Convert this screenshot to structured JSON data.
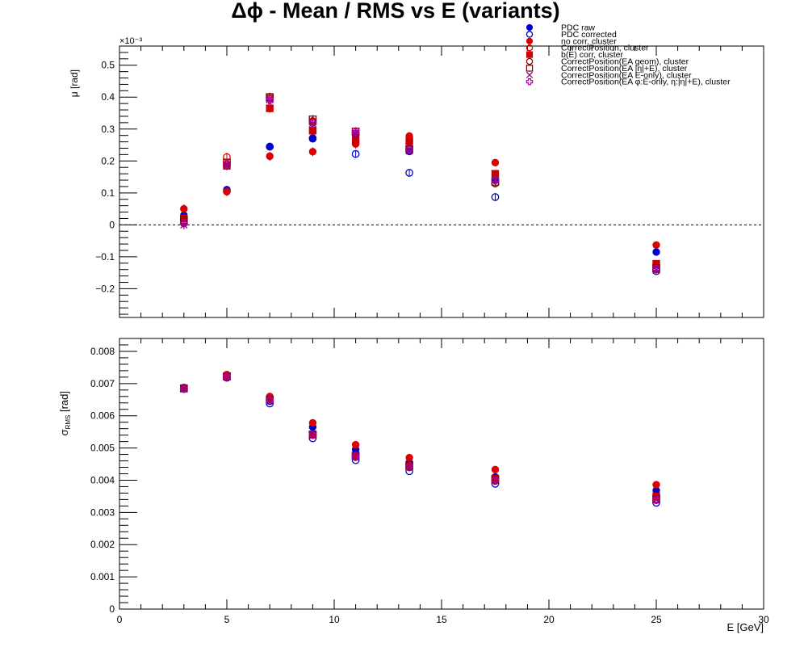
{
  "title": "Δϕ  -  Mean / RMS vs E  (variants)",
  "legend": {
    "placement": "top-right",
    "entries": [
      {
        "label": "PDC raw",
        "marker": "filled-circle",
        "color": "#0000cc"
      },
      {
        "label": "PDC corrected",
        "marker": "open-circle",
        "color": "#0000cc"
      },
      {
        "label": "no corr, cluster",
        "marker": "filled-circle",
        "color": "#dd0000"
      },
      {
        "label": "CorrectPosition, cluster",
        "marker": "open-circle",
        "color": "#dd0000"
      },
      {
        "label": "b(E) corr, cluster",
        "marker": "filled-square",
        "color": "#cc0000"
      },
      {
        "label": "CorrectPosition(EA geom), cluster",
        "marker": "open-circle",
        "color": "#880000"
      },
      {
        "label": "CorrectPosition(EA |η|+E), cluster",
        "marker": "open-square",
        "color": "#880000"
      },
      {
        "label": "CorrectPosition(EA E-only), cluster",
        "marker": "cross",
        "color": "#880088"
      },
      {
        "label": "CorrectPosition(EA φ:E-only, η:|η|+E), cluster",
        "marker": "open-cross",
        "color": "#aa00aa"
      }
    ]
  },
  "chart_data": [
    {
      "type": "scatter",
      "panel": "top",
      "ylabel": "μ  [rad]",
      "yexponent": "×10⁻³",
      "xlim": [
        0,
        30
      ],
      "ylim": [
        -0.29,
        0.56
      ],
      "yticks": [
        "0.5",
        "0.4",
        "0.3",
        "0.2",
        "0.1",
        "0",
        "−0.1",
        "−0.2"
      ],
      "yticks_values": [
        0.5,
        0.4,
        0.3,
        0.2,
        0.1,
        0,
        -0.1,
        -0.2
      ],
      "reference_line": 0,
      "x": [
        3,
        5,
        7,
        9,
        11,
        13.5,
        17.5,
        25
      ],
      "series": [
        {
          "name": "PDC raw",
          "values": [
            0.03,
            0.11,
            0.245,
            0.272,
            0.28,
            0.23,
            0.14,
            -0.085
          ],
          "err": [
            0.012,
            0.012,
            0.012,
            0.012,
            0.012,
            0.012,
            0.01,
            0.008
          ]
        },
        {
          "name": "PDC corrected",
          "values": [
            0.02,
            0.105,
            0.245,
            0.27,
            0.222,
            0.163,
            0.087,
            -0.145
          ],
          "err": [
            0.012,
            0.012,
            0.012,
            0.012,
            0.012,
            0.012,
            0.01,
            0.008
          ]
        },
        {
          "name": "no corr, cluster",
          "values": [
            0.05,
            0.104,
            0.215,
            0.229,
            0.253,
            0.278,
            0.195,
            -0.063
          ],
          "err": [
            0.014,
            0.014,
            0.014,
            0.014,
            0.014,
            0.012,
            0.01,
            0.008
          ]
        },
        {
          "name": "CorrectPosition, cluster",
          "values": [
            0.01,
            0.212,
            0.4,
            0.325,
            0.28,
            0.24,
            0.13,
            -0.138
          ],
          "err": [
            0.014,
            0.014,
            0.014,
            0.014,
            0.014,
            0.012,
            0.01,
            0.008
          ]
        },
        {
          "name": "b(E) corr, cluster",
          "values": [
            0.02,
            0.185,
            0.365,
            0.295,
            0.263,
            0.262,
            0.16,
            -0.122
          ],
          "err": [
            0.014,
            0.014,
            0.014,
            0.014,
            0.014,
            0.012,
            0.01,
            0.008
          ]
        },
        {
          "name": "CorrectPosition(EA geom), cluster",
          "values": [
            0.005,
            0.19,
            0.395,
            0.322,
            0.285,
            0.235,
            0.13,
            -0.14
          ],
          "err": [
            0.014,
            0.014,
            0.014,
            0.014,
            0.014,
            0.012,
            0.01,
            0.008
          ]
        },
        {
          "name": "CorrectPosition(EA |η|+E), cluster",
          "values": [
            0.015,
            0.195,
            0.4,
            0.33,
            0.292,
            0.237,
            0.135,
            -0.135
          ],
          "err": [
            0.014,
            0.014,
            0.014,
            0.014,
            0.014,
            0.012,
            0.01,
            0.008
          ]
        },
        {
          "name": "CorrectPosition(EA E-only), cluster",
          "values": [
            0.0,
            0.185,
            0.392,
            0.318,
            0.288,
            0.232,
            0.14,
            -0.142
          ],
          "err": [
            0.014,
            0.014,
            0.014,
            0.014,
            0.014,
            0.012,
            0.01,
            0.008
          ]
        },
        {
          "name": "CorrectPosition(EA φ:E-only, η:|η|+E), cluster",
          "values": [
            0.005,
            0.19,
            0.39,
            0.318,
            0.29,
            0.236,
            0.14,
            -0.138
          ],
          "err": [
            0.014,
            0.014,
            0.014,
            0.014,
            0.014,
            0.012,
            0.01,
            0.008
          ]
        }
      ]
    },
    {
      "type": "scatter",
      "panel": "bottom",
      "ylabel": "σ",
      "ylabel_sub": "RMS",
      "ylabel_unit": "  [rad]",
      "xlabel": "E  [GeV]",
      "xlim": [
        0,
        30
      ],
      "ylim": [
        0,
        0.0084
      ],
      "xticks": [
        "0",
        "5",
        "10",
        "15",
        "20",
        "25",
        "30"
      ],
      "xticks_values": [
        0,
        5,
        10,
        15,
        20,
        25,
        30
      ],
      "yticks": [
        "0",
        "0.001",
        "0.002",
        "0.003",
        "0.004",
        "0.005",
        "0.006",
        "0.007",
        "0.008"
      ],
      "yticks_values": [
        0,
        0.001,
        0.002,
        0.003,
        0.004,
        0.005,
        0.006,
        0.007,
        0.008
      ],
      "x": [
        3,
        5,
        7,
        9,
        11,
        13.5,
        17.5,
        25
      ],
      "series": [
        {
          "name": "PDC raw",
          "values": [
            0.00686,
            0.00722,
            0.00645,
            0.00565,
            0.00495,
            0.00455,
            0.0041,
            0.00368
          ]
        },
        {
          "name": "PDC corrected",
          "values": [
            0.00683,
            0.00718,
            0.00638,
            0.0053,
            0.00462,
            0.00428,
            0.00389,
            0.0033
          ]
        },
        {
          "name": "no corr, cluster",
          "values": [
            0.00688,
            0.00728,
            0.0066,
            0.00578,
            0.0051,
            0.0047,
            0.00433,
            0.00386
          ]
        },
        {
          "name": "CorrectPosition, cluster",
          "values": [
            0.00685,
            0.00722,
            0.00652,
            0.00542,
            0.00478,
            0.00448,
            0.004,
            0.0034
          ]
        },
        {
          "name": "b(E) corr, cluster",
          "values": [
            0.00685,
            0.00723,
            0.0065,
            0.00542,
            0.00475,
            0.00445,
            0.00405,
            0.0035
          ]
        },
        {
          "name": "CorrectPosition(EA geom), cluster",
          "values": [
            0.00684,
            0.0072,
            0.00648,
            0.0054,
            0.00472,
            0.0044,
            0.00398,
            0.00338
          ]
        },
        {
          "name": "CorrectPosition(EA |η|+E), cluster",
          "values": [
            0.00685,
            0.00722,
            0.0065,
            0.00542,
            0.00476,
            0.00446,
            0.00402,
            0.00342
          ]
        },
        {
          "name": "CorrectPosition(EA E-only), cluster",
          "values": [
            0.00684,
            0.00721,
            0.00649,
            0.00541,
            0.00474,
            0.00443,
            0.004,
            0.00339
          ]
        },
        {
          "name": "CorrectPosition(EA φ:E-only, η:|η|+E), cluster",
          "values": [
            0.00684,
            0.00721,
            0.00649,
            0.00541,
            0.00474,
            0.00443,
            0.004,
            0.0034
          ]
        }
      ]
    }
  ]
}
